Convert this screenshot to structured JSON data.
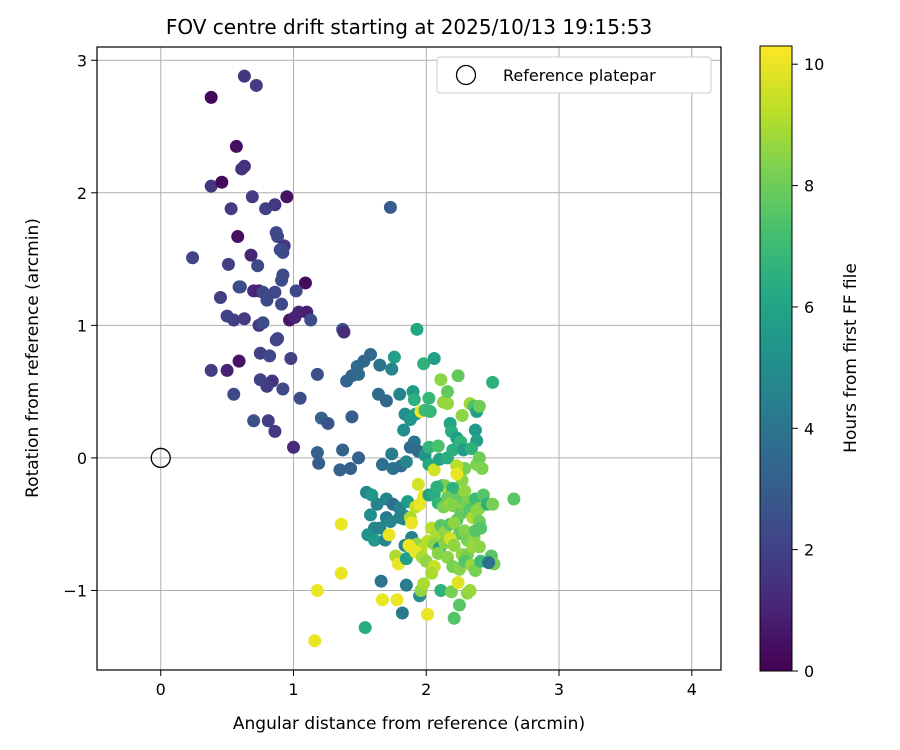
{
  "chart_data": {
    "type": "scatter",
    "title": "FOV centre drift starting at 2025/10/13 19:15:53",
    "xlabel": "Angular distance from reference (arcmin)",
    "ylabel": "Rotation from reference (arcmin)",
    "xlim": [
      -0.48,
      4.22
    ],
    "ylim": [
      -1.6,
      3.1
    ],
    "xticks": [
      0,
      1,
      2,
      3,
      4
    ],
    "yticks": [
      -1,
      0,
      1,
      2,
      3
    ],
    "xtick_labels": [
      "0",
      "1",
      "2",
      "3",
      "4"
    ],
    "ytick_labels": [
      "−1",
      "0",
      "1",
      "2",
      "3"
    ],
    "grid": true,
    "colorbar": {
      "label": "Hours from first FF file",
      "range": [
        0,
        10.3
      ],
      "ticks": [
        0,
        2,
        4,
        6,
        8,
        10
      ],
      "tick_labels": [
        "0",
        "2",
        "4",
        "6",
        "8",
        "10"
      ],
      "colormap": "viridis"
    },
    "legend": {
      "placement": "upper-right",
      "entries": [
        {
          "label": "Reference platepar",
          "marker": "hollow-circle",
          "x": 0,
          "y": 0
        }
      ]
    },
    "points": [
      [
        0.38,
        2.72,
        0.2
      ],
      [
        0.63,
        2.88,
        1.6
      ],
      [
        0.72,
        2.81,
        1.8
      ],
      [
        0.57,
        2.35,
        0.4
      ],
      [
        0.63,
        2.2,
        1.4
      ],
      [
        0.61,
        2.18,
        1.5
      ],
      [
        0.38,
        2.05,
        1.6
      ],
      [
        0.46,
        2.08,
        0.2
      ],
      [
        0.69,
        1.97,
        1.8
      ],
      [
        0.79,
        1.88,
        2.0
      ],
      [
        0.86,
        1.91,
        1.7
      ],
      [
        0.95,
        1.97,
        0.5
      ],
      [
        0.53,
        1.88,
        1.8
      ],
      [
        1.73,
        1.89,
        3.0
      ],
      [
        0.58,
        1.67,
        0.4
      ],
      [
        0.87,
        1.7,
        2.2
      ],
      [
        0.88,
        1.67,
        2.3
      ],
      [
        0.93,
        1.6,
        1.7
      ],
      [
        0.24,
        1.51,
        2.1
      ],
      [
        0.68,
        1.53,
        1.1
      ],
      [
        0.92,
        1.55,
        2.2
      ],
      [
        0.51,
        1.46,
        1.9
      ],
      [
        0.73,
        1.45,
        2.3
      ],
      [
        0.9,
        1.57,
        2.3
      ],
      [
        0.91,
        1.34,
        2.4
      ],
      [
        0.92,
        1.38,
        2.3
      ],
      [
        1.09,
        1.32,
        0.3
      ],
      [
        0.59,
        1.29,
        2.2
      ],
      [
        0.6,
        1.29,
        2.4
      ],
      [
        0.7,
        1.26,
        1.2
      ],
      [
        0.74,
        1.26,
        1.0
      ],
      [
        0.77,
        1.25,
        2.3
      ],
      [
        0.8,
        1.19,
        2.3
      ],
      [
        0.86,
        1.25,
        2.2
      ],
      [
        1.02,
        1.26,
        2.2
      ],
      [
        0.45,
        1.21,
        1.9
      ],
      [
        0.91,
        1.16,
        2.3
      ],
      [
        1.04,
        1.1,
        1.1
      ],
      [
        1.1,
        1.1,
        0.9
      ],
      [
        0.5,
        1.07,
        2.0
      ],
      [
        0.55,
        1.04,
        1.9
      ],
      [
        0.63,
        1.05,
        1.8
      ],
      [
        0.74,
        1.0,
        1.7
      ],
      [
        0.77,
        1.02,
        2.4
      ],
      [
        0.97,
        1.04,
        0.6
      ],
      [
        1.01,
        1.06,
        1.0
      ],
      [
        1.13,
        1.04,
        2.4
      ],
      [
        1.37,
        0.97,
        2.7
      ],
      [
        1.38,
        0.95,
        1.3
      ],
      [
        0.87,
        0.89,
        2.1
      ],
      [
        0.88,
        0.9,
        2.1
      ],
      [
        0.59,
        0.73,
        0.5
      ],
      [
        0.75,
        0.79,
        2.0
      ],
      [
        0.82,
        0.77,
        2.2
      ],
      [
        0.98,
        0.75,
        1.9
      ],
      [
        0.38,
        0.66,
        1.8
      ],
      [
        0.5,
        0.66,
        1.0
      ],
      [
        0.75,
        0.59,
        2.1
      ],
      [
        0.84,
        0.58,
        1.5
      ],
      [
        0.92,
        0.52,
        2.2
      ],
      [
        1.18,
        0.63,
        2.5
      ],
      [
        0.55,
        0.48,
        2.3
      ],
      [
        0.8,
        0.54,
        1.8
      ],
      [
        1.05,
        0.45,
        2.4
      ],
      [
        0.7,
        0.28,
        2.5
      ],
      [
        0.81,
        0.28,
        1.9
      ],
      [
        0.86,
        0.2,
        1.7
      ],
      [
        1.21,
        0.3,
        3.2
      ],
      [
        1.26,
        0.26,
        2.7
      ],
      [
        1.44,
        0.31,
        3.0
      ],
      [
        1.0,
        0.08,
        1.3
      ],
      [
        1.18,
        0.04,
        3.2
      ],
      [
        1.19,
        -0.04,
        3.0
      ],
      [
        1.37,
        0.06,
        3.2
      ],
      [
        1.35,
        -0.09,
        3.2
      ],
      [
        1.43,
        -0.08,
        3.1
      ],
      [
        1.49,
        0.0,
        3.2
      ],
      [
        1.4,
        0.58,
        3.3
      ],
      [
        1.44,
        0.62,
        3.4
      ],
      [
        1.48,
        0.69,
        3.6
      ],
      [
        1.49,
        0.63,
        3.6
      ],
      [
        1.53,
        0.73,
        3.4
      ],
      [
        1.58,
        0.78,
        3.5
      ],
      [
        1.65,
        0.7,
        3.9
      ],
      [
        1.74,
        0.67,
        4.6
      ],
      [
        1.76,
        0.76,
        5.8
      ],
      [
        1.93,
        0.97,
        6.2
      ],
      [
        1.98,
        0.71,
        6.6
      ],
      [
        2.06,
        0.75,
        5.8
      ],
      [
        1.64,
        0.48,
        3.6
      ],
      [
        1.7,
        0.43,
        3.4
      ],
      [
        1.8,
        0.48,
        4.6
      ],
      [
        1.84,
        0.33,
        5.0
      ],
      [
        1.88,
        0.29,
        5.4
      ],
      [
        1.9,
        0.5,
        5.6
      ],
      [
        1.91,
        0.44,
        6.5
      ],
      [
        1.92,
        0.33,
        5.6
      ],
      [
        1.96,
        0.35,
        10.0
      ],
      [
        1.99,
        0.36,
        7.0
      ],
      [
        2.02,
        0.45,
        6.8
      ],
      [
        2.03,
        0.35,
        6.8
      ],
      [
        2.11,
        0.59,
        8.5
      ],
      [
        2.13,
        0.42,
        8.6
      ],
      [
        2.16,
        0.41,
        8.7
      ],
      [
        2.16,
        0.5,
        7.8
      ],
      [
        2.18,
        0.26,
        6.0
      ],
      [
        2.19,
        0.2,
        6.4
      ],
      [
        2.24,
        0.62,
        7.8
      ],
      [
        2.27,
        0.32,
        8.5
      ],
      [
        2.33,
        0.41,
        8.8
      ],
      [
        2.36,
        0.39,
        7.4
      ],
      [
        2.38,
        0.35,
        5.8
      ],
      [
        2.4,
        0.39,
        8.0
      ],
      [
        2.5,
        0.57,
        6.6
      ],
      [
        2.37,
        0.21,
        5.6
      ],
      [
        2.38,
        0.13,
        5.8
      ],
      [
        1.83,
        0.21,
        5.0
      ],
      [
        1.91,
        0.12,
        4.0
      ],
      [
        1.88,
        0.08,
        3.6
      ],
      [
        1.94,
        0.05,
        3.6
      ],
      [
        1.74,
        0.03,
        4.3
      ],
      [
        1.99,
        0.02,
        5.3
      ],
      [
        2.02,
        -0.05,
        6.2
      ],
      [
        2.02,
        0.08,
        6.7
      ],
      [
        2.06,
        -0.09,
        9.6
      ],
      [
        2.09,
        0.09,
        7.3
      ],
      [
        2.1,
        -0.01,
        6.0
      ],
      [
        2.16,
        0.0,
        6.4
      ],
      [
        2.2,
        0.06,
        6.5
      ],
      [
        2.23,
        0.15,
        5.8
      ],
      [
        2.26,
        0.12,
        6.7
      ],
      [
        2.28,
        0.06,
        5.7
      ],
      [
        2.29,
        -0.08,
        8.2
      ],
      [
        2.34,
        0.07,
        6.6
      ],
      [
        2.38,
        -0.05,
        8.3
      ],
      [
        2.4,
        0.0,
        8.0
      ],
      [
        2.42,
        -0.08,
        8.3
      ],
      [
        1.67,
        -0.05,
        3.7
      ],
      [
        1.75,
        -0.08,
        3.9
      ],
      [
        1.81,
        -0.06,
        3.7
      ],
      [
        1.85,
        -0.03,
        4.6
      ],
      [
        2.23,
        -0.06,
        9.2
      ],
      [
        2.27,
        -0.17,
        8.5
      ],
      [
        1.94,
        -0.2,
        9.6
      ],
      [
        2.12,
        -0.21,
        6.1
      ],
      [
        2.14,
        -0.21,
        8.2
      ],
      [
        2.17,
        -0.27,
        9.4
      ],
      [
        2.2,
        -0.23,
        6.6
      ],
      [
        2.23,
        -0.12,
        10.0
      ],
      [
        2.24,
        -0.31,
        7.8
      ],
      [
        2.29,
        -0.25,
        8.6
      ],
      [
        2.31,
        -0.33,
        8.3
      ],
      [
        2.37,
        -0.31,
        7.0
      ],
      [
        2.4,
        -0.38,
        8.4
      ],
      [
        2.43,
        -0.28,
        7.5
      ],
      [
        2.46,
        -0.35,
        6.6
      ],
      [
        2.5,
        -0.35,
        8.2
      ],
      [
        2.66,
        -0.31,
        7.6
      ],
      [
        1.55,
        -0.26,
        4.6
      ],
      [
        1.59,
        -0.28,
        5.5
      ],
      [
        1.63,
        -0.35,
        4.6
      ],
      [
        1.7,
        -0.31,
        4.6
      ],
      [
        1.75,
        -0.35,
        3.8
      ],
      [
        1.8,
        -0.38,
        4.6
      ],
      [
        1.84,
        -0.44,
        5.0
      ],
      [
        1.86,
        -0.33,
        5.7
      ],
      [
        1.92,
        -0.37,
        9.4
      ],
      [
        1.95,
        -0.35,
        10.0
      ],
      [
        1.98,
        -0.29,
        10.0
      ],
      [
        2.02,
        -0.28,
        5.8
      ],
      [
        2.06,
        -0.27,
        6.4
      ],
      [
        2.08,
        -0.22,
        6.5
      ],
      [
        2.09,
        -0.34,
        6.7
      ],
      [
        2.13,
        -0.37,
        8.2
      ],
      [
        2.16,
        -0.3,
        7.9
      ],
      [
        2.18,
        -0.35,
        8.6
      ],
      [
        2.2,
        -0.36,
        8.4
      ],
      [
        2.23,
        -0.47,
        7.3
      ],
      [
        2.26,
        -0.42,
        7.8
      ],
      [
        2.3,
        -0.37,
        8.2
      ],
      [
        2.33,
        -0.39,
        7.5
      ],
      [
        2.35,
        -0.45,
        9.0
      ],
      [
        2.38,
        -0.4,
        8.5
      ],
      [
        2.4,
        -0.48,
        8.0
      ],
      [
        2.41,
        -0.53,
        7.5
      ],
      [
        1.58,
        -0.43,
        5.1
      ],
      [
        1.61,
        -0.53,
        4.6
      ],
      [
        1.65,
        -0.53,
        4.6
      ],
      [
        1.7,
        -0.45,
        4.2
      ],
      [
        1.73,
        -0.48,
        4.6
      ],
      [
        1.8,
        -0.45,
        4.6
      ],
      [
        1.83,
        -0.46,
        4.6
      ],
      [
        1.88,
        -0.45,
        9.0
      ],
      [
        1.89,
        -0.49,
        10.0
      ],
      [
        2.04,
        -0.53,
        9.2
      ],
      [
        2.08,
        -0.57,
        9.0
      ],
      [
        2.11,
        -0.51,
        7.6
      ],
      [
        2.14,
        -0.56,
        8.6
      ],
      [
        2.18,
        -0.5,
        7.5
      ],
      [
        2.21,
        -0.49,
        8.5
      ],
      [
        2.25,
        -0.57,
        7.8
      ],
      [
        2.29,
        -0.55,
        8.4
      ],
      [
        2.31,
        -0.62,
        8.2
      ],
      [
        2.36,
        -0.6,
        8.5
      ],
      [
        2.37,
        -0.55,
        7.5
      ],
      [
        1.56,
        -0.58,
        5.2
      ],
      [
        1.61,
        -0.62,
        5.5
      ],
      [
        1.69,
        -0.62,
        4.6
      ],
      [
        1.72,
        -0.58,
        10.0
      ],
      [
        1.84,
        -0.66,
        4.6
      ],
      [
        1.89,
        -0.6,
        4.6
      ],
      [
        1.93,
        -0.65,
        8.6
      ],
      [
        1.96,
        -0.69,
        9.2
      ],
      [
        2.01,
        -0.63,
        9.2
      ],
      [
        2.06,
        -0.65,
        8.5
      ],
      [
        2.1,
        -0.68,
        5.8
      ],
      [
        2.14,
        -0.64,
        8.4
      ],
      [
        2.18,
        -0.61,
        9.6
      ],
      [
        2.21,
        -0.66,
        8.6
      ],
      [
        2.27,
        -0.73,
        8.6
      ],
      [
        2.31,
        -0.73,
        8.2
      ],
      [
        2.35,
        -0.67,
        8.7
      ],
      [
        2.4,
        -0.67,
        8.5
      ],
      [
        2.49,
        -0.74,
        7.6
      ],
      [
        2.51,
        -0.8,
        8.2
      ],
      [
        1.77,
        -0.74,
        9.0
      ],
      [
        1.79,
        -0.8,
        10.0
      ],
      [
        1.85,
        -0.76,
        5.8
      ],
      [
        1.87,
        -0.66,
        10.0
      ],
      [
        1.92,
        -0.71,
        10.0
      ],
      [
        1.97,
        -0.75,
        9.0
      ],
      [
        2.0,
        -0.78,
        8.6
      ],
      [
        2.06,
        -0.82,
        9.4
      ],
      [
        2.09,
        -0.72,
        8.4
      ],
      [
        2.16,
        -0.75,
        8.5
      ],
      [
        2.2,
        -0.82,
        8.2
      ],
      [
        2.25,
        -0.84,
        8.4
      ],
      [
        2.29,
        -0.78,
        7.5
      ],
      [
        2.34,
        -0.81,
        8.7
      ],
      [
        2.37,
        -0.85,
        8.2
      ],
      [
        2.41,
        -0.78,
        7.0
      ],
      [
        2.47,
        -0.79,
        3.8
      ],
      [
        1.36,
        -0.87,
        10.0
      ],
      [
        1.36,
        -0.5,
        10.0
      ],
      [
        1.18,
        -1.0,
        10.0
      ],
      [
        1.16,
        -1.38,
        10.0
      ],
      [
        1.54,
        -1.28,
        6.3
      ],
      [
        1.66,
        -0.93,
        3.9
      ],
      [
        1.67,
        -1.07,
        10.0
      ],
      [
        1.78,
        -1.07,
        10.0
      ],
      [
        1.82,
        -1.17,
        4.2
      ],
      [
        1.85,
        -0.96,
        4.3
      ],
      [
        1.95,
        -1.04,
        5.0
      ],
      [
        1.96,
        -1.0,
        8.6
      ],
      [
        1.98,
        -0.95,
        9.0
      ],
      [
        2.01,
        -1.18,
        10.0
      ],
      [
        2.04,
        -0.87,
        9.0
      ],
      [
        2.11,
        -1.0,
        6.6
      ],
      [
        2.19,
        -1.01,
        8.2
      ],
      [
        2.21,
        -1.21,
        7.5
      ],
      [
        2.24,
        -0.94,
        9.8
      ],
      [
        2.25,
        -1.11,
        7.6
      ],
      [
        2.31,
        -1.02,
        8.5
      ],
      [
        2.33,
        -1.0,
        8.7
      ]
    ]
  }
}
